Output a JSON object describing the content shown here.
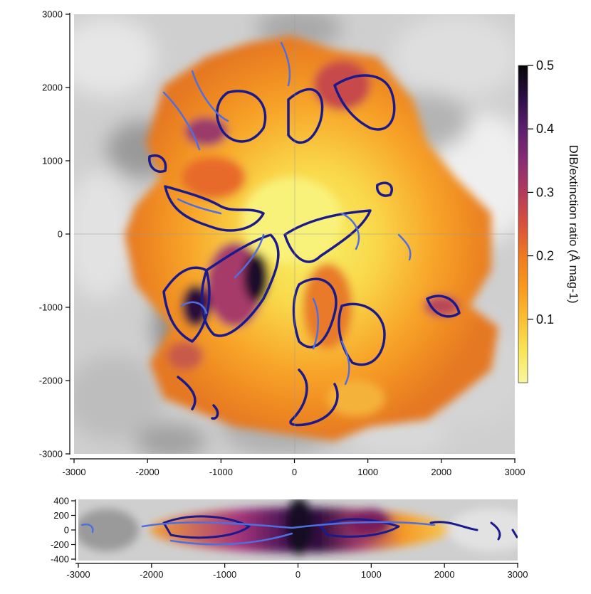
{
  "chart_data": [
    {
      "type": "heatmap",
      "panel": "main",
      "xlim": [
        -3000,
        3000
      ],
      "ylim": [
        -3000,
        3000
      ],
      "x_ticks": [
        -3000,
        -2000,
        -1000,
        0,
        1000,
        2000,
        3000
      ],
      "y_ticks": [
        -3000,
        -2000,
        -1000,
        0,
        1000,
        2000,
        3000
      ],
      "x_tick_labels": [
        "-3000",
        "-2000",
        "-1000",
        "0",
        "1000",
        "2000",
        "3000"
      ],
      "y_tick_labels": [
        "-3000",
        "-2000",
        "-1000",
        "0",
        "1000",
        "2000",
        "3000"
      ],
      "colorbar": {
        "label": "DIB/extinction ratio (Å mag-1)",
        "range": [
          0,
          0.5
        ],
        "ticks": [
          0.1,
          0.2,
          0.3,
          0.4,
          0.5
        ],
        "tick_labels": [
          "0.1",
          "0.2",
          "0.3",
          "0.4",
          "0.5"
        ],
        "colormap": [
          "#f7f7a0",
          "#f9e455",
          "#fbbf32",
          "#f8991b",
          "#ef7a1f",
          "#d9503a",
          "#b33a5c",
          "#8a2c73",
          "#5c1f6e",
          "#2c0f45",
          "#050505"
        ]
      },
      "background": "grayscale extinction map",
      "contour_colors": [
        "#1a1a8c",
        "#4f6fe0"
      ]
    },
    {
      "type": "heatmap",
      "panel": "vertical-slice",
      "xlim": [
        -3000,
        3000
      ],
      "ylim": [
        -400,
        400
      ],
      "x_ticks": [
        -3000,
        -2000,
        -1000,
        0,
        1000,
        2000,
        3000
      ],
      "y_ticks": [
        400,
        200,
        0,
        -200,
        -400
      ],
      "x_tick_labels": [
        "-3000",
        "-2000",
        "-1000",
        "0",
        "1000",
        "2000",
        "3000"
      ],
      "y_tick_labels": [
        "400",
        "200",
        "0",
        "-200",
        "-400"
      ]
    }
  ]
}
